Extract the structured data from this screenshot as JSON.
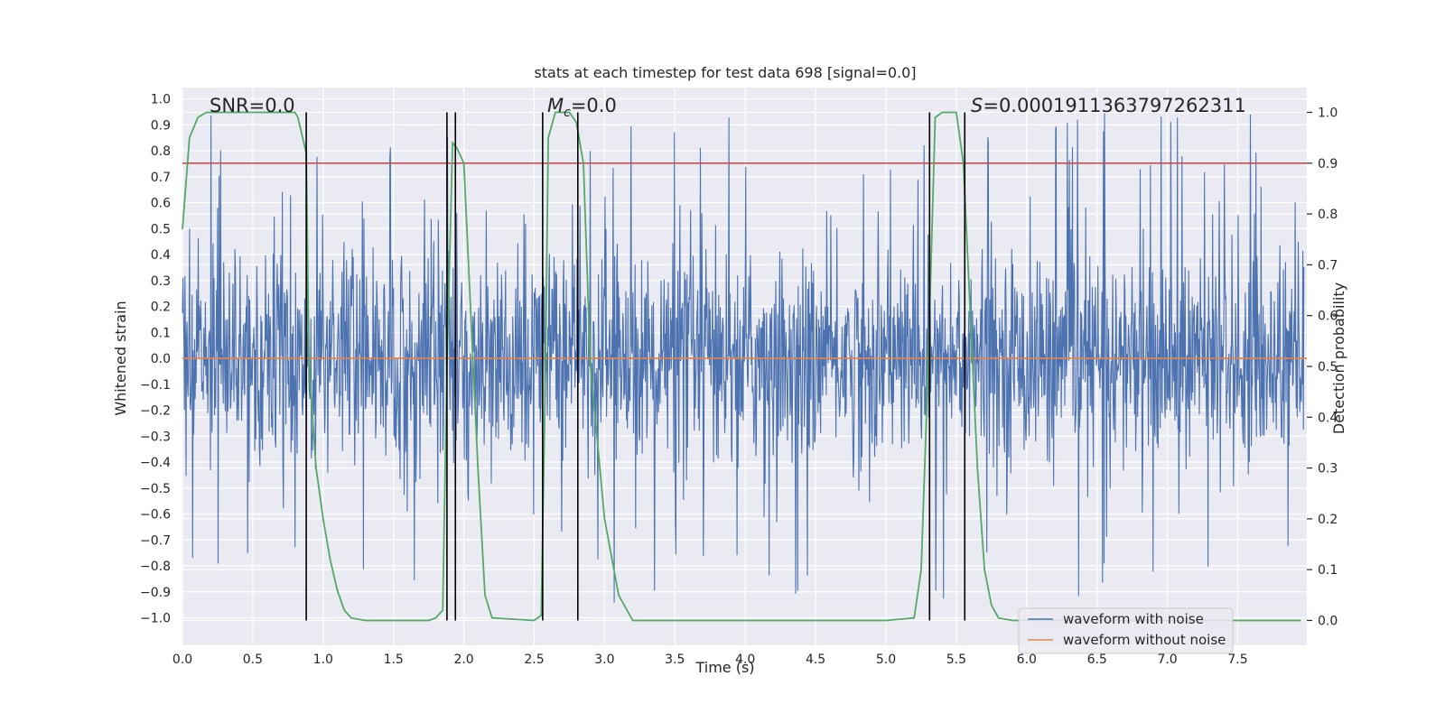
{
  "chart_data": {
    "type": "line",
    "title": "stats at each timestep for test data 698 [signal=0.0]",
    "xlabel": "Time (s)",
    "ylabel": "Whitened strain",
    "y2label": "Detection probability",
    "xlim": [
      0.0,
      8.0
    ],
    "ylim": [
      -1.1,
      1.05
    ],
    "y2lim": [
      -0.05,
      1.04
    ],
    "xticks": [
      "0.0",
      "0.5",
      "1.0",
      "1.5",
      "2.0",
      "2.5",
      "3.0",
      "3.5",
      "4.0",
      "4.5",
      "5.0",
      "5.5",
      "6.0",
      "6.5",
      "7.0",
      "7.5"
    ],
    "yticks": [
      "1.0",
      "0.9",
      "0.8",
      "0.7",
      "0.6",
      "0.5",
      "0.4",
      "0.3",
      "0.2",
      "0.1",
      "0.0",
      "-0.1",
      "-0.2",
      "-0.3",
      "-0.4",
      "-0.5",
      "-0.6",
      "-0.7",
      "-0.8",
      "-0.9",
      "-1.0"
    ],
    "y2ticks": [
      "1.0",
      "0.9",
      "0.8",
      "0.7",
      "0.6",
      "0.5",
      "0.4",
      "0.3",
      "0.2",
      "0.1",
      "0.0"
    ],
    "grid": true,
    "annotations": {
      "snr_prefix": "SNR=",
      "snr_value": "0.0",
      "mc_prefix": "M",
      "mc_sub": "c",
      "mc_value": "=0.0",
      "s_prefix": "S",
      "s_value": "=0.0001911363797262311"
    },
    "legend": {
      "position": "lower-right",
      "items": [
        {
          "label": "waveform with noise",
          "color": "#4c72b0"
        },
        {
          "label": "waveform without noise",
          "color": "#dd8452"
        }
      ]
    },
    "series": [
      {
        "name": "waveform with noise",
        "axis": "left",
        "color": "#4c72b0",
        "kind": "noise",
        "approx_band": [
          -0.45,
          0.45
        ],
        "approx_peak": [
          -1.0,
          0.95
        ]
      },
      {
        "name": "waveform without noise",
        "axis": "left",
        "color": "#dd8452",
        "constant": 0.0
      },
      {
        "axis": "right",
        "color": "#55a868",
        "x": [
          0.0,
          0.05,
          0.11,
          0.17,
          0.25,
          0.4,
          0.6,
          0.8,
          0.82,
          0.88,
          0.9,
          0.95,
          1.0,
          1.05,
          1.1,
          1.15,
          1.2,
          1.3,
          1.5,
          1.75,
          1.8,
          1.85,
          1.88,
          1.92,
          1.95,
          2.0,
          2.05,
          2.1,
          2.15,
          2.2,
          2.5,
          2.55,
          2.58,
          2.6,
          2.65,
          2.7,
          2.75,
          2.8,
          2.85,
          2.9,
          3.0,
          3.1,
          3.2,
          3.3,
          5.0,
          5.2,
          5.25,
          5.3,
          5.35,
          5.4,
          5.45,
          5.5,
          5.55,
          5.6,
          5.65,
          5.7,
          5.75,
          5.8,
          5.9,
          7.95
        ],
        "y": [
          0.77,
          0.95,
          0.99,
          1.0,
          1.0,
          1.0,
          1.0,
          1.0,
          0.99,
          0.92,
          0.5,
          0.3,
          0.2,
          0.12,
          0.06,
          0.02,
          0.005,
          0.0,
          0.0,
          0.0,
          0.005,
          0.02,
          0.5,
          0.94,
          0.93,
          0.9,
          0.6,
          0.3,
          0.05,
          0.005,
          0.0,
          0.01,
          0.5,
          0.95,
          1.0,
          1.0,
          1.0,
          0.98,
          0.9,
          0.5,
          0.2,
          0.05,
          0.0,
          0.0,
          0.0,
          0.005,
          0.1,
          0.5,
          0.99,
          1.0,
          1.0,
          1.0,
          0.9,
          0.6,
          0.3,
          0.1,
          0.03,
          0.005,
          0.0,
          0.0
        ]
      },
      {
        "axis": "right",
        "color": "#c44e52",
        "constant": 0.9
      }
    ],
    "vlines": [
      0.88,
      1.88,
      1.94,
      2.56,
      2.81,
      5.31,
      5.56
    ]
  }
}
